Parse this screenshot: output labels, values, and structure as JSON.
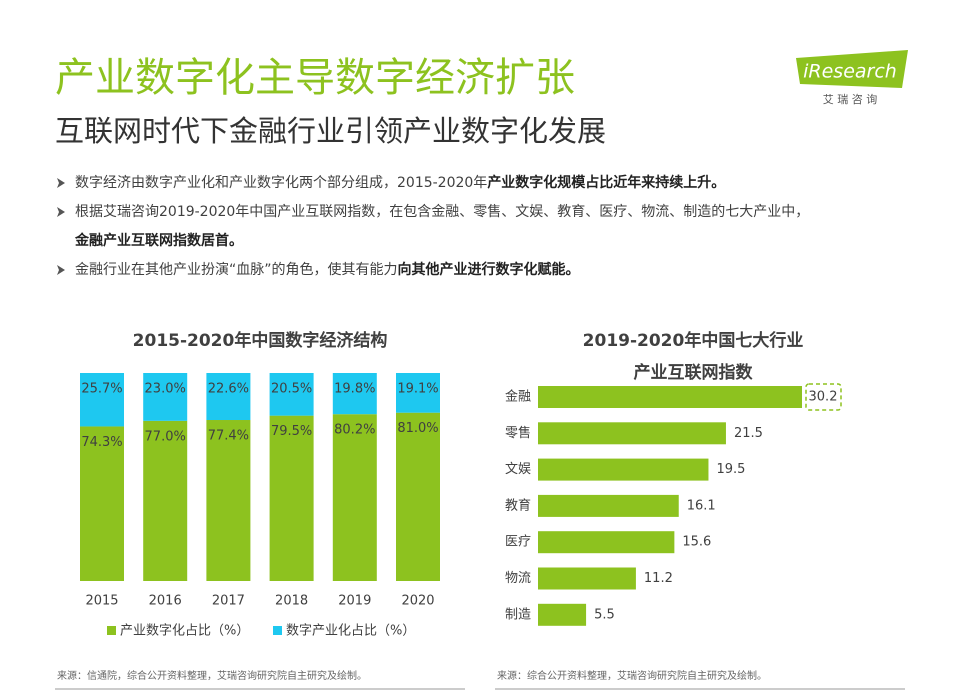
{
  "header": {
    "title": "产业数字化主导数字经济扩张",
    "subtitle": "互联网时代下金融行业引领产业数字化发展",
    "logo": "iResearch",
    "logo_sub": "艾 瑞 咨 询"
  },
  "bullets": [
    [
      [
        {
          "text": "数字经济由数字产业化和产业数字化两个部分组成，2015-2020年",
          "bold": false
        },
        {
          "text": "产业数字化规模占比近年来持续上升。",
          "bold": true
        }
      ]
    ],
    [
      [
        {
          "text": "根据艾瑞咨询2019-2020年中国产业互联网指数，在包含金融、零售、文娱、教育、医疗、物流、制造的七大产业中，",
          "bold": false
        }
      ],
      [
        {
          "text": "金融产业互联网指数居首。",
          "bold": true
        }
      ]
    ],
    [
      [
        {
          "text": "金融行业在其他产业扮演“血脉”的角色，使其有能力",
          "bold": false
        },
        {
          "text": "向其他产业进行数字化赋能。",
          "bold": true
        }
      ]
    ]
  ],
  "chart_data": [
    {
      "type": "stacked_bar",
      "title": "2015-2020年中国数字经济结构",
      "categories": [
        "2015",
        "2016",
        "2017",
        "2018",
        "2019",
        "2020"
      ],
      "series": [
        {
          "name": "产业数字化占比（%）",
          "color": "#8dc21f",
          "values": [
            74.3,
            77.0,
            77.4,
            79.5,
            80.2,
            81.0
          ],
          "value_labels": [
            "74.3%",
            "77.0%",
            "77.4%",
            "79.5%",
            "80.2%",
            "81.0%"
          ]
        },
        {
          "name": "数字产业化占比（%）",
          "color": "#1ec8f0",
          "values": [
            25.7,
            23.0,
            22.6,
            20.5,
            19.8,
            19.1
          ],
          "value_labels": [
            "25.7%",
            "23.0%",
            "22.6%",
            "20.5%",
            "19.8%",
            "19.1%"
          ]
        }
      ],
      "source": "来源：信通院，综合公开资料整理，艾瑞咨询研究院自主研究及绘制。"
    },
    {
      "type": "hbar",
      "title": [
        "2019-2020年中国七大行业",
        "产业互联网指数"
      ],
      "categories": [
        "金融",
        "零售",
        "文娱",
        "教育",
        "医疗",
        "物流",
        "制造"
      ],
      "values": [
        30.2,
        21.5,
        19.5,
        16.1,
        15.6,
        11.2,
        5.5
      ],
      "color": "#8dc21f",
      "source": "来源：综合公开资料整理，艾瑞咨询研究院自主研究及绘制。"
    }
  ]
}
